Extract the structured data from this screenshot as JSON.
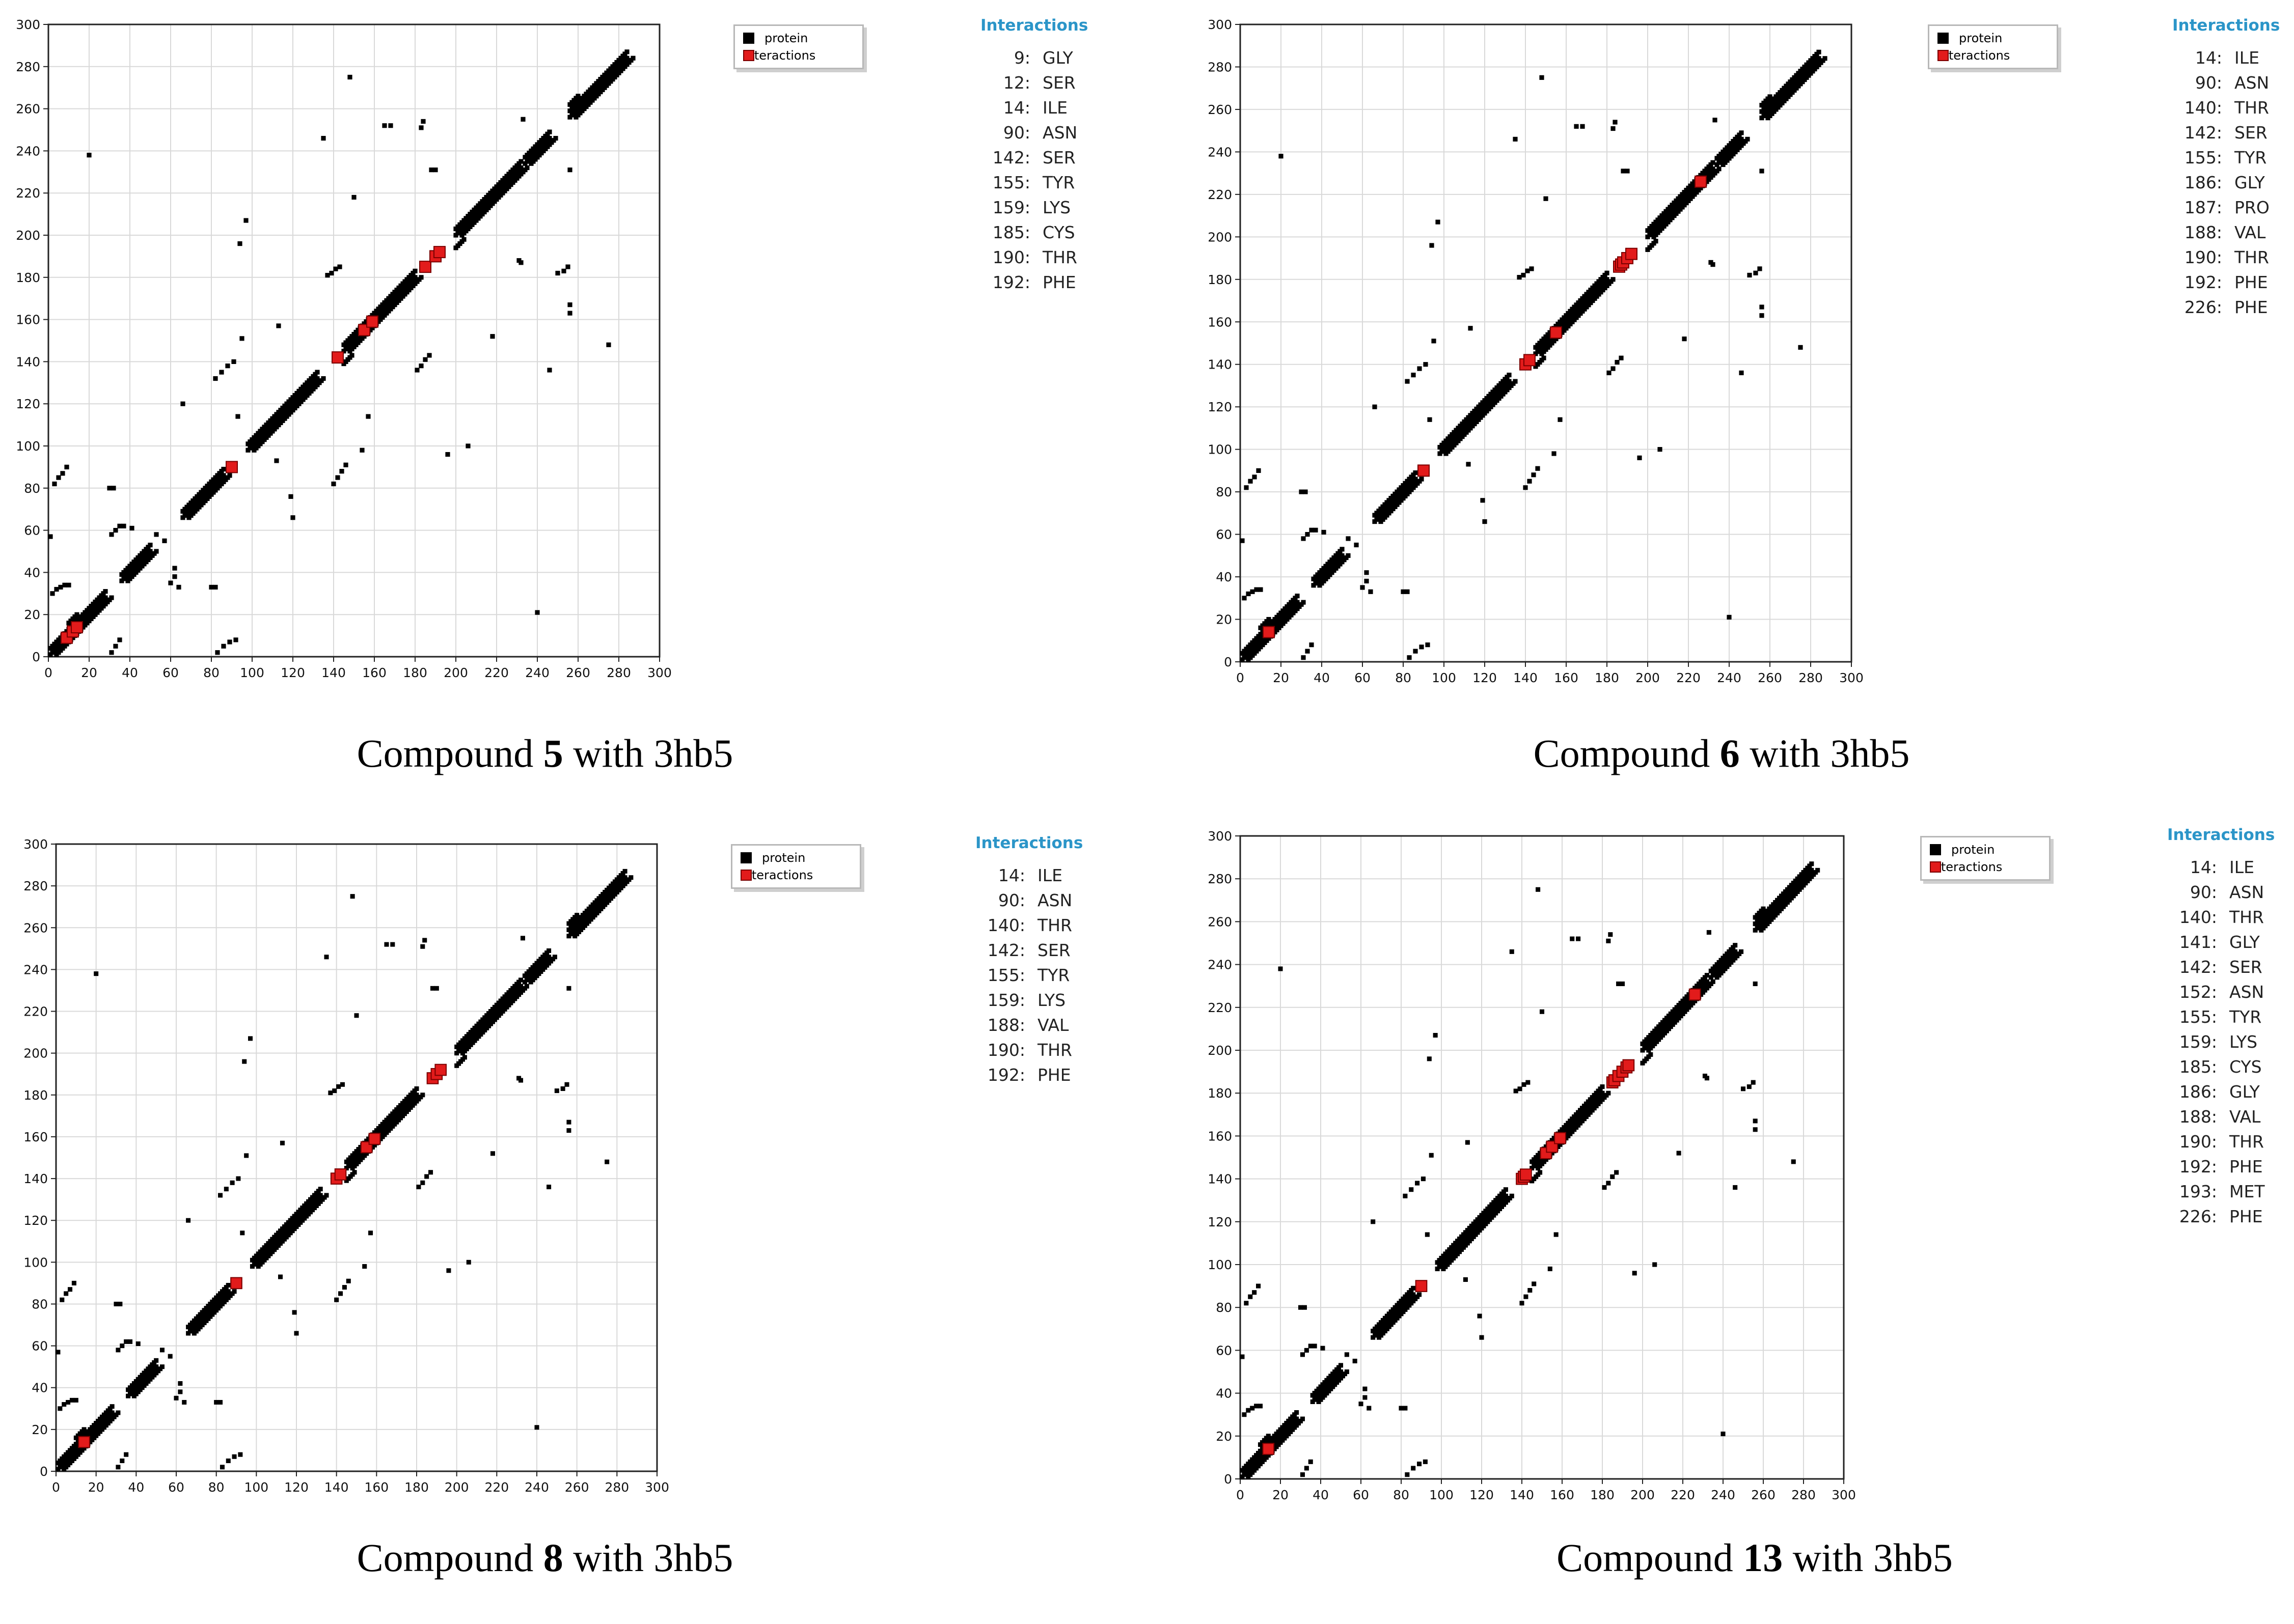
{
  "colors": {
    "protein": "#000000",
    "interactions": "#e21b1b",
    "title": "#2b95c8",
    "grid": "#d9d9d9"
  },
  "chart_data": [
    {
      "type": "scatter",
      "title": "Compound 5 with 3hb5",
      "caption": {
        "pre": "Compound ",
        "bold": "5",
        "post": " with 3hb5"
      },
      "xlim": [
        0,
        300
      ],
      "ylim": [
        0,
        300
      ],
      "xticks": [
        0,
        20,
        40,
        60,
        80,
        100,
        120,
        140,
        160,
        180,
        200,
        220,
        240,
        260,
        280,
        300
      ],
      "yticks": [
        0,
        20,
        40,
        60,
        80,
        100,
        120,
        140,
        160,
        180,
        200,
        220,
        240,
        260,
        280,
        300
      ],
      "legend": {
        "protein": "protein",
        "interactions": "interactions",
        "position": "top-right"
      },
      "interactions_title": "Interactions",
      "residues": [
        {
          "num": "9:",
          "aa": "GLY"
        },
        {
          "num": "12:",
          "aa": "SER"
        },
        {
          "num": "14:",
          "aa": "ILE"
        },
        {
          "num": "90:",
          "aa": "ASN"
        },
        {
          "num": "142:",
          "aa": "SER"
        },
        {
          "num": "155:",
          "aa": "TYR"
        },
        {
          "num": "159:",
          "aa": "LYS"
        },
        {
          "num": "185:",
          "aa": "CYS"
        },
        {
          "num": "190:",
          "aa": "THR"
        },
        {
          "num": "192:",
          "aa": "PHE"
        }
      ],
      "interaction_points": [
        9,
        12,
        14,
        90,
        142,
        155,
        159,
        185,
        190,
        192
      ]
    },
    {
      "type": "scatter",
      "title": "Compound 6 with 3hb5",
      "caption": {
        "pre": "Compound ",
        "bold": "6",
        "post": " with 3hb5"
      },
      "xlim": [
        0,
        300
      ],
      "ylim": [
        0,
        300
      ],
      "xticks": [
        0,
        20,
        40,
        60,
        80,
        100,
        120,
        140,
        160,
        180,
        200,
        220,
        240,
        260,
        280,
        300
      ],
      "yticks": [
        0,
        20,
        40,
        60,
        80,
        100,
        120,
        140,
        160,
        180,
        200,
        220,
        240,
        260,
        280,
        300
      ],
      "legend": {
        "protein": "protein",
        "interactions": "interactions",
        "position": "top-right"
      },
      "interactions_title": "Interactions",
      "residues": [
        {
          "num": "14:",
          "aa": "ILE"
        },
        {
          "num": "90:",
          "aa": "ASN"
        },
        {
          "num": "140:",
          "aa": "THR"
        },
        {
          "num": "142:",
          "aa": "SER"
        },
        {
          "num": "155:",
          "aa": "TYR"
        },
        {
          "num": "186:",
          "aa": "GLY"
        },
        {
          "num": "187:",
          "aa": "PRO"
        },
        {
          "num": "188:",
          "aa": "VAL"
        },
        {
          "num": "190:",
          "aa": "THR"
        },
        {
          "num": "192:",
          "aa": "PHE"
        },
        {
          "num": "226:",
          "aa": "PHE"
        }
      ],
      "interaction_points": [
        14,
        90,
        140,
        142,
        155,
        186,
        187,
        188,
        190,
        192,
        226
      ]
    },
    {
      "type": "scatter",
      "title": "Compound 8 with 3hb5",
      "caption": {
        "pre": "Compound ",
        "bold": "8",
        "post": " with 3hb5"
      },
      "xlim": [
        0,
        300
      ],
      "ylim": [
        0,
        300
      ],
      "xticks": [
        0,
        20,
        40,
        60,
        80,
        100,
        120,
        140,
        160,
        180,
        200,
        220,
        240,
        260,
        280,
        300
      ],
      "yticks": [
        0,
        20,
        40,
        60,
        80,
        100,
        120,
        140,
        160,
        180,
        200,
        220,
        240,
        260,
        280,
        300
      ],
      "legend": {
        "protein": "protein",
        "interactions": "interactions",
        "position": "top-right"
      },
      "interactions_title": "Interactions",
      "residues": [
        {
          "num": "14:",
          "aa": "ILE"
        },
        {
          "num": "90:",
          "aa": "ASN"
        },
        {
          "num": "140:",
          "aa": "THR"
        },
        {
          "num": "142:",
          "aa": "SER"
        },
        {
          "num": "155:",
          "aa": "TYR"
        },
        {
          "num": "159:",
          "aa": "LYS"
        },
        {
          "num": "188:",
          "aa": "VAL"
        },
        {
          "num": "190:",
          "aa": "THR"
        },
        {
          "num": "192:",
          "aa": "PHE"
        }
      ],
      "interaction_points": [
        14,
        90,
        140,
        142,
        155,
        159,
        188,
        190,
        192
      ]
    },
    {
      "type": "scatter",
      "title": "Compound 13 with 3hb5",
      "caption": {
        "pre": "Compound ",
        "bold": "13",
        "post": " with 3hb5"
      },
      "xlim": [
        0,
        300
      ],
      "ylim": [
        0,
        300
      ],
      "xticks": [
        0,
        20,
        40,
        60,
        80,
        100,
        120,
        140,
        160,
        180,
        200,
        220,
        240,
        260,
        280,
        300
      ],
      "yticks": [
        0,
        20,
        40,
        60,
        80,
        100,
        120,
        140,
        160,
        180,
        200,
        220,
        240,
        260,
        280,
        300
      ],
      "legend": {
        "protein": "protein",
        "interactions": "interactions",
        "position": "top-right"
      },
      "interactions_title": "Interactions",
      "residues": [
        {
          "num": "14:",
          "aa": "ILE"
        },
        {
          "num": "90:",
          "aa": "ASN"
        },
        {
          "num": "140:",
          "aa": "THR"
        },
        {
          "num": "141:",
          "aa": "GLY"
        },
        {
          "num": "142:",
          "aa": "SER"
        },
        {
          "num": "152:",
          "aa": "ASN"
        },
        {
          "num": "155:",
          "aa": "TYR"
        },
        {
          "num": "159:",
          "aa": "LYS"
        },
        {
          "num": "185:",
          "aa": "CYS"
        },
        {
          "num": "186:",
          "aa": "GLY"
        },
        {
          "num": "188:",
          "aa": "VAL"
        },
        {
          "num": "190:",
          "aa": "THR"
        },
        {
          "num": "192:",
          "aa": "PHE"
        },
        {
          "num": "193:",
          "aa": "MET"
        },
        {
          "num": "226:",
          "aa": "PHE"
        }
      ],
      "interaction_points": [
        14,
        90,
        140,
        141,
        142,
        152,
        155,
        159,
        185,
        186,
        188,
        190,
        192,
        193,
        226
      ]
    }
  ],
  "protein_contacts": {
    "diagonal_segments": [
      [
        1,
        12
      ],
      [
        13,
        28
      ],
      [
        36,
        50
      ],
      [
        66,
        86
      ],
      [
        98,
        132
      ],
      [
        145,
        180
      ],
      [
        200,
        232
      ],
      [
        234,
        246
      ],
      [
        256,
        284
      ]
    ],
    "offset_segments": [
      [
        10,
        6
      ],
      [
        145,
        -6
      ],
      [
        200,
        -6
      ],
      [
        256,
        6
      ]
    ],
    "scattered": [
      [
        3,
        82
      ],
      [
        5,
        85
      ],
      [
        7,
        87
      ],
      [
        9,
        90
      ],
      [
        2,
        30
      ],
      [
        4,
        32
      ],
      [
        6,
        33
      ],
      [
        8,
        34
      ],
      [
        10,
        34
      ],
      [
        1,
        57
      ],
      [
        20,
        238
      ],
      [
        30,
        80
      ],
      [
        32,
        80
      ],
      [
        31,
        58
      ],
      [
        33,
        60
      ],
      [
        35,
        62
      ],
      [
        37,
        62
      ],
      [
        31,
        2
      ],
      [
        33,
        5
      ],
      [
        35,
        8
      ],
      [
        41,
        61
      ],
      [
        53,
        58
      ],
      [
        57,
        55
      ],
      [
        62,
        42
      ],
      [
        62,
        38
      ],
      [
        60,
        35
      ],
      [
        64,
        33
      ],
      [
        66,
        120
      ],
      [
        80,
        33
      ],
      [
        82,
        33
      ],
      [
        83,
        2
      ],
      [
        86,
        5
      ],
      [
        89,
        7
      ],
      [
        92,
        8
      ],
      [
        82,
        132
      ],
      [
        85,
        135
      ],
      [
        88,
        138
      ],
      [
        91,
        140
      ],
      [
        94,
        196
      ],
      [
        97,
        207
      ],
      [
        93,
        114
      ],
      [
        95,
        151
      ],
      [
        112,
        93
      ],
      [
        113,
        157
      ],
      [
        119,
        76
      ],
      [
        120,
        66
      ],
      [
        135,
        246
      ],
      [
        137,
        181
      ],
      [
        139,
        182
      ],
      [
        141,
        184
      ],
      [
        143,
        185
      ],
      [
        148,
        275
      ],
      [
        150,
        218
      ],
      [
        140,
        82
      ],
      [
        142,
        85
      ],
      [
        144,
        88
      ],
      [
        146,
        91
      ],
      [
        157,
        114
      ],
      [
        154,
        98
      ],
      [
        165,
        252
      ],
      [
        168,
        252
      ],
      [
        183,
        251
      ],
      [
        184,
        254
      ],
      [
        188,
        231
      ],
      [
        190,
        231
      ],
      [
        181,
        136
      ],
      [
        183,
        138
      ],
      [
        185,
        141
      ],
      [
        187,
        143
      ],
      [
        196,
        96
      ],
      [
        206,
        100
      ],
      [
        218,
        152
      ],
      [
        231,
        188
      ],
      [
        233,
        255
      ],
      [
        232,
        187
      ],
      [
        240,
        21
      ],
      [
        246,
        136
      ],
      [
        250,
        182
      ],
      [
        253,
        183
      ],
      [
        255,
        185
      ],
      [
        256,
        163
      ],
      [
        256,
        167
      ],
      [
        256,
        231
      ],
      [
        275,
        148
      ]
    ]
  }
}
